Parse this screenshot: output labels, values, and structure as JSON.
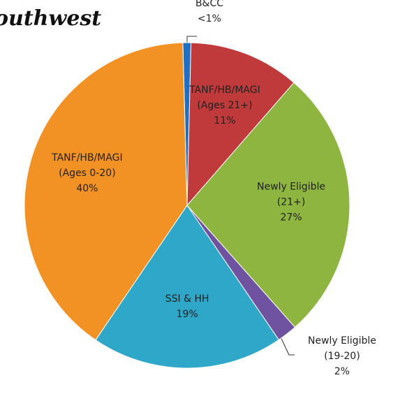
{
  "chart_data": {
    "type": "pie",
    "title": "outhwest",
    "categories": [
      "B&CC",
      "TANF/HB/MAGI\n(Ages 21+)",
      "Newly Eligible\n(21+)",
      "Newly Eligible\n(19-20)",
      "SSI & HH",
      "TANF/HB/MAGI\n(Ages 0-20)"
    ],
    "values": [
      0.8,
      11,
      27,
      2,
      19,
      40
    ],
    "value_labels": [
      "<1%",
      "11%",
      "27%",
      "2%",
      "19%",
      "40%"
    ],
    "colors": [
      "#1f6fc5",
      "#c0393b",
      "#8db540",
      "#7053a0",
      "#2fa7c9",
      "#f39224"
    ]
  }
}
